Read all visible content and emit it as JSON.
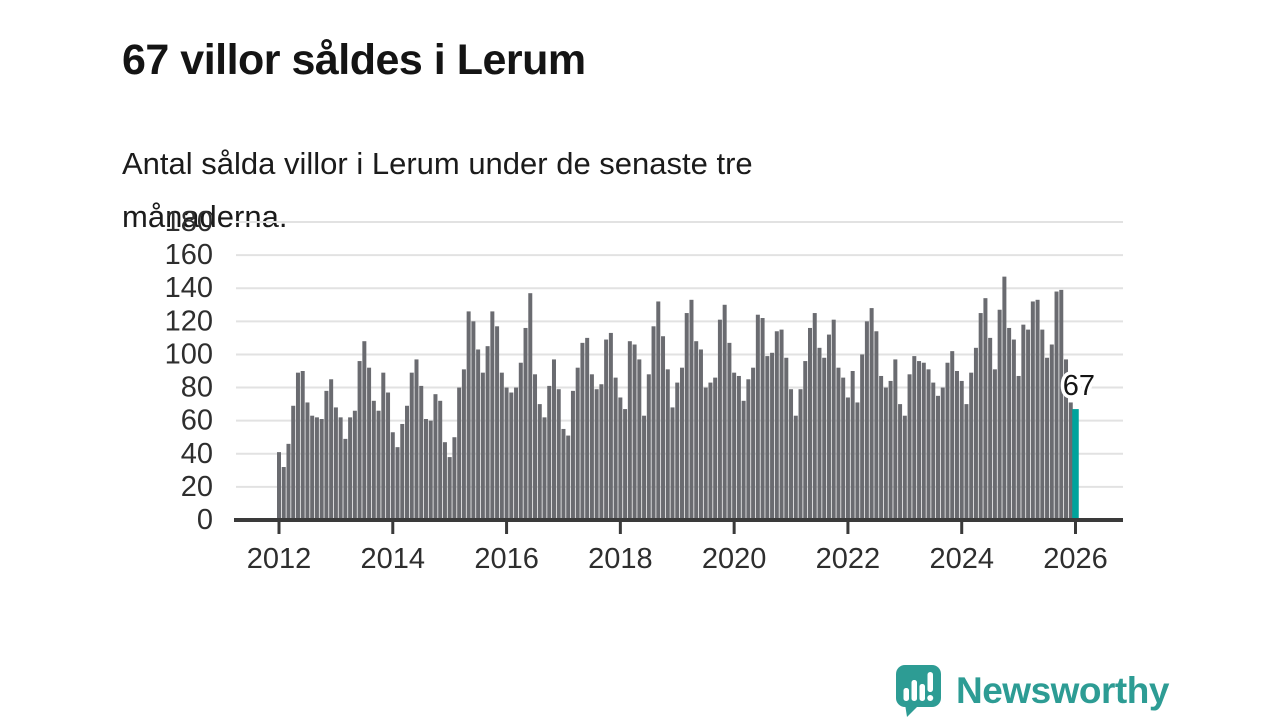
{
  "title": "67 villor såldes i Lerum",
  "subtitle": {
    "full": "Antal sålda villor i Lerum under de senaste tre månaderna.",
    "line1": "Antal sålda villor i Lerum under de senaste tre",
    "line2": "månaderna."
  },
  "annotation": {
    "label": "67",
    "value": 67
  },
  "logo": {
    "name": "Newsworthy"
  },
  "colors": {
    "bar": "#6a6b70",
    "highlight": "#00a39c",
    "grid": "#e2e2e2",
    "axis": "#3a3a3a",
    "tick_text": "#2e2e2e",
    "annotation_text": "#141414",
    "brand": "#2d9c94"
  },
  "chart_data": {
    "type": "bar",
    "title": "67 villor såldes i Lerum",
    "subtitle": "Antal sålda villor i Lerum under de senaste tre månaderna.",
    "frequency": "monthly",
    "x_start": "2012-01",
    "x_end": "2026-01",
    "x_tick_labels": [
      "2012",
      "2014",
      "2016",
      "2018",
      "2020",
      "2022",
      "2024",
      "2026"
    ],
    "ylim": [
      0,
      180
    ],
    "y_ticks": [
      0,
      20,
      40,
      60,
      80,
      100,
      120,
      140,
      160,
      180
    ],
    "grid": "horizontal",
    "legend": "none",
    "bar_color": "#6a6b70",
    "highlight_last": {
      "value": 67,
      "label": "67",
      "color": "#00a39c"
    },
    "values": [
      41,
      32,
      46,
      69,
      89,
      90,
      71,
      63,
      62,
      61,
      78,
      85,
      68,
      62,
      49,
      62,
      66,
      96,
      108,
      92,
      72,
      66,
      89,
      77,
      53,
      44,
      58,
      69,
      89,
      97,
      81,
      61,
      60,
      76,
      72,
      47,
      38,
      50,
      80,
      91,
      126,
      120,
      103,
      89,
      105,
      126,
      117,
      89,
      80,
      77,
      80,
      95,
      116,
      137,
      88,
      70,
      62,
      81,
      97,
      79,
      55,
      51,
      78,
      92,
      107,
      110,
      88,
      79,
      82,
      109,
      113,
      86,
      74,
      67,
      108,
      106,
      97,
      63,
      88,
      117,
      132,
      111,
      91,
      68,
      83,
      92,
      125,
      133,
      108,
      103,
      80,
      83,
      86,
      121,
      130,
      107,
      89,
      87,
      72,
      85,
      92,
      124,
      122,
      99,
      101,
      114,
      115,
      98,
      79,
      63,
      79,
      96,
      116,
      125,
      104,
      98,
      112,
      121,
      92,
      86,
      74,
      90,
      71,
      100,
      120,
      128,
      114,
      87,
      80,
      84,
      97,
      70,
      63,
      88,
      99,
      96,
      95,
      91,
      83,
      75,
      80,
      95,
      102,
      90,
      84,
      70,
      89,
      104,
      125,
      134,
      110,
      91,
      127,
      147,
      116,
      109,
      87,
      118,
      115,
      132,
      133,
      115,
      98,
      106,
      138,
      139,
      97,
      71,
      67
    ]
  }
}
